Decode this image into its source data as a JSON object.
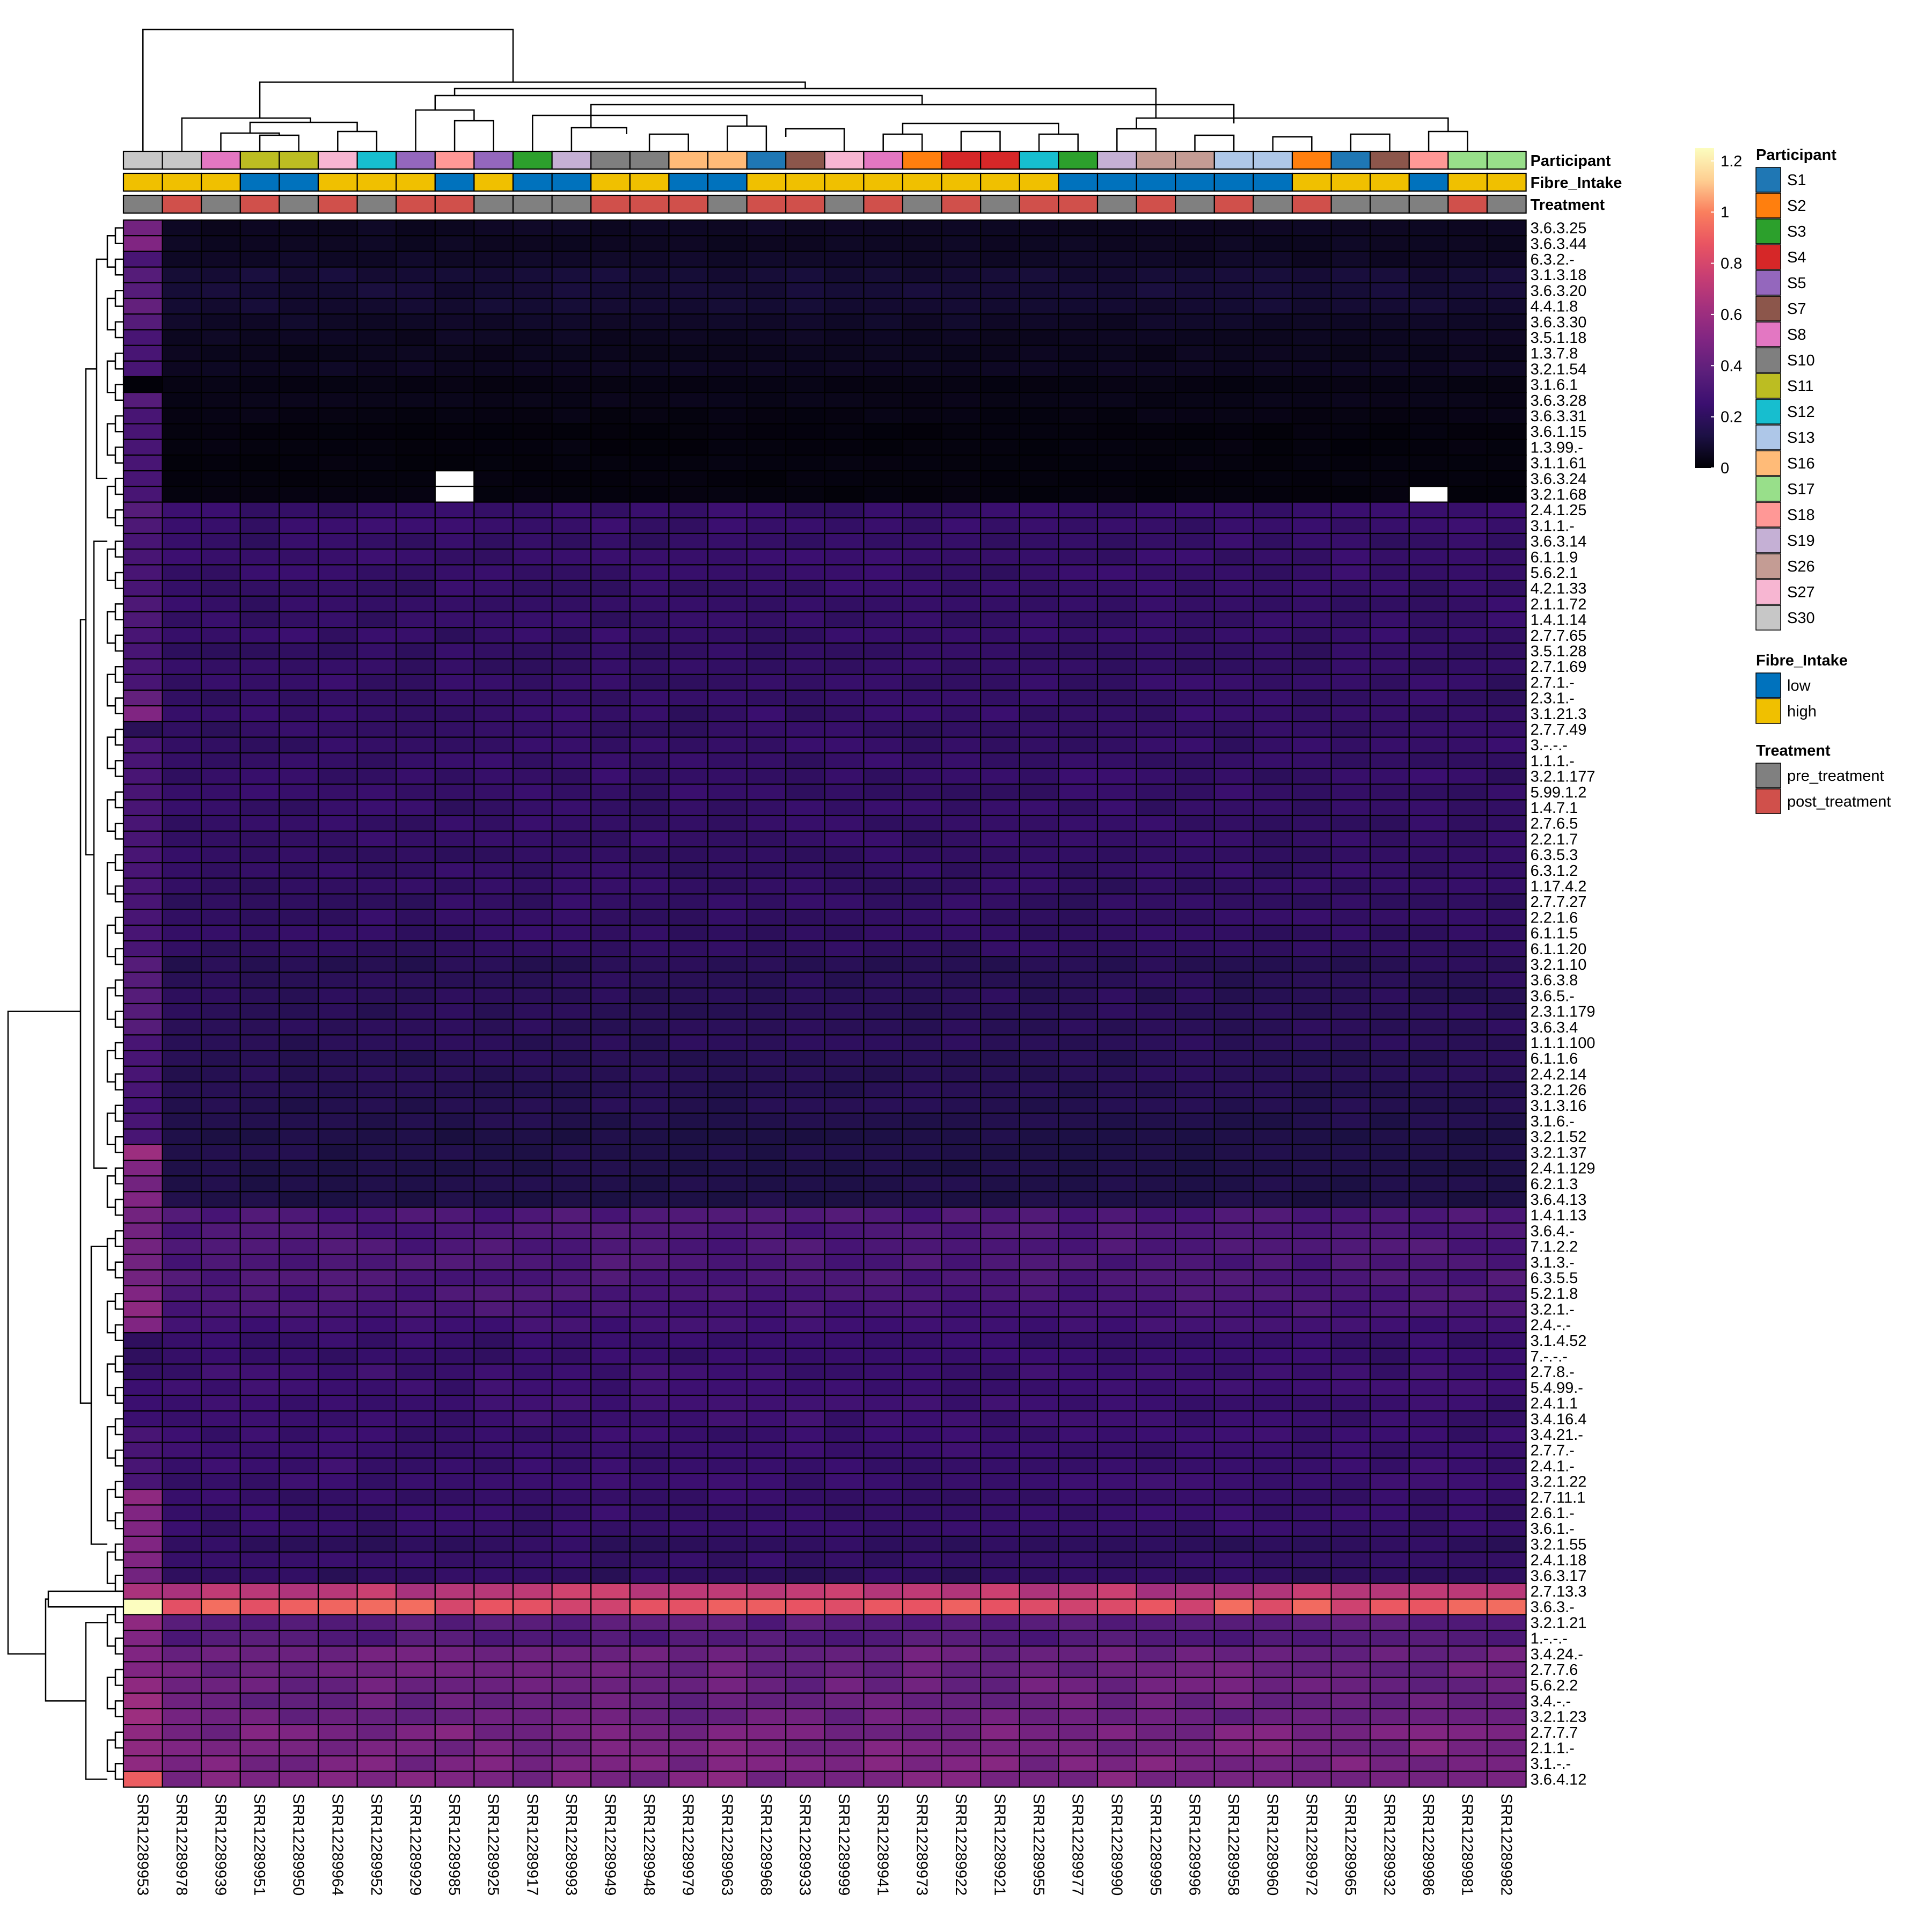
{
  "chart_data": {
    "type": "heatmap",
    "samples": [
      "SRR12289953",
      "SRR12289978",
      "SRR12289939",
      "SRR12289951",
      "SRR12289950",
      "SRR12289964",
      "SRR12289952",
      "SRR12289929",
      "SRR12289985",
      "SRR12289925",
      "SRR12289917",
      "SRR12289993",
      "SRR12289949",
      "SRR12289948",
      "SRR12289979",
      "SRR12289963",
      "SRR12289968",
      "SRR12289933",
      "SRR12289999",
      "SRR12289941",
      "SRR12289973",
      "SRR12289922",
      "SRR12289921",
      "SRR12289955",
      "SRR12289977",
      "SRR12289990",
      "SRR12289995",
      "SRR12289996",
      "SRR12289958",
      "SRR12289960",
      "SRR12289972",
      "SRR12289965",
      "SRR12289932",
      "SRR12289986",
      "SRR12289981",
      "SRR12289982"
    ],
    "rows": [
      "3.6.3.25",
      "3.6.3.44",
      "6.3.2.-",
      "3.1.3.18",
      "3.6.3.20",
      "4.4.1.8",
      "3.6.3.30",
      "3.5.1.18",
      "1.3.7.8",
      "3.2.1.54",
      "3.1.6.1",
      "3.6.3.28",
      "3.6.3.31",
      "3.6.1.15",
      "1.3.99.-",
      "3.1.1.61",
      "3.6.3.24",
      "3.2.1.68",
      "2.4.1.25",
      "3.1.1.-",
      "3.6.3.14",
      "6.1.1.9",
      "5.6.2.1",
      "4.2.1.33",
      "2.1.1.72",
      "1.4.1.14",
      "2.7.7.65",
      "3.5.1.28",
      "2.7.1.69",
      "2.7.1.-",
      "2.3.1.-",
      "3.1.21.3",
      "2.7.7.49",
      "3.-.-.-",
      "1.1.1.-",
      "3.2.1.177",
      "5.99.1.2",
      "1.4.7.1",
      "2.7.6.5",
      "2.2.1.7",
      "6.3.5.3",
      "6.3.1.2",
      "1.17.4.2",
      "2.7.7.27",
      "2.2.1.6",
      "6.1.1.5",
      "6.1.1.20",
      "3.2.1.10",
      "3.6.3.8",
      "3.6.5.-",
      "2.3.1.179",
      "3.6.3.4",
      "1.1.1.100",
      "6.1.1.6",
      "2.4.2.14",
      "3.2.1.26",
      "3.1.3.16",
      "3.1.6.-",
      "3.2.1.52",
      "3.2.1.37",
      "2.4.1.129",
      "6.2.1.3",
      "3.6.4.13",
      "1.4.1.13",
      "3.6.4.-",
      "7.1.2.2",
      "3.1.3.-",
      "6.3.5.5",
      "5.2.1.8",
      "3.2.1.-",
      "2.4.-.-",
      "3.1.4.52",
      "7.-.-.-",
      "2.7.8.-",
      "5.4.99.-",
      "2.4.1.1",
      "3.4.16.4",
      "3.4.21.-",
      "2.7.7.-",
      "2.4.1.-",
      "3.2.1.22",
      "2.7.11.1",
      "2.6.1.-",
      "3.6.1.-",
      "3.2.1.55",
      "2.4.1.18",
      "3.6.3.17",
      "2.7.13.3",
      "3.6.3.-",
      "3.2.1.21",
      "1.-.-.-",
      "3.4.24.-",
      "2.7.7.6",
      "5.6.2.2",
      "3.4.-.-",
      "3.2.1.23",
      "2.7.7.7",
      "2.1.1.-",
      "3.1.-.-",
      "3.6.4.12"
    ],
    "annotation_tracks": [
      "Participant",
      "Fibre_Intake",
      "Treatment"
    ],
    "participant_per_sample": [
      "S30",
      "S30",
      "S8",
      "S11",
      "S11",
      "S27",
      "S12",
      "S5",
      "S18",
      "S5",
      "S3",
      "S19",
      "S10",
      "S10",
      "S16",
      "S16",
      "S1",
      "S7",
      "S27",
      "S8",
      "S2",
      "S4",
      "S4",
      "S12",
      "S3",
      "S19",
      "S26",
      "S26",
      "S13",
      "S13",
      "S2",
      "S1",
      "S7",
      "S18",
      "S17",
      "S17"
    ],
    "fibre_per_sample": [
      "high",
      "high",
      "high",
      "low",
      "low",
      "high",
      "high",
      "high",
      "low",
      "high",
      "low",
      "low",
      "high",
      "high",
      "low",
      "low",
      "high",
      "high",
      "high",
      "high",
      "high",
      "high",
      "high",
      "high",
      "low",
      "low",
      "low",
      "low",
      "low",
      "low",
      "high",
      "high",
      "high",
      "low",
      "high",
      "high"
    ],
    "treatment_per_sample": [
      "pre_treatment",
      "post_treatment",
      "pre_treatment",
      "post_treatment",
      "pre_treatment",
      "post_treatment",
      "pre_treatment",
      "post_treatment",
      "post_treatment",
      "pre_treatment",
      "pre_treatment",
      "pre_treatment",
      "post_treatment",
      "post_treatment",
      "post_treatment",
      "pre_treatment",
      "post_treatment",
      "post_treatment",
      "pre_treatment",
      "post_treatment",
      "pre_treatment",
      "post_treatment",
      "pre_treatment",
      "post_treatment",
      "post_treatment",
      "pre_treatment",
      "post_treatment",
      "pre_treatment",
      "post_treatment",
      "pre_treatment",
      "post_treatment",
      "pre_treatment",
      "pre_treatment",
      "pre_treatment",
      "post_treatment",
      "pre_treatment"
    ],
    "color_scale": {
      "ticks": [
        "1.2",
        "1",
        "0.8",
        "0.6",
        "0.4",
        "0.2",
        "0"
      ],
      "range": [
        0,
        1.25
      ],
      "colors": [
        "#000004",
        "#1c1044",
        "#3b0f70",
        "#5c1f7b",
        "#802582",
        "#a3307e",
        "#c83e73",
        "#e95462",
        "#fa7f5e",
        "#fecf92",
        "#fcfdbf"
      ]
    },
    "row_base_values": [
      0.06,
      0.06,
      0.07,
      0.1,
      0.1,
      0.09,
      0.07,
      0.06,
      0.05,
      0.06,
      0.03,
      0.04,
      0.03,
      0.02,
      0.02,
      0.02,
      0.02,
      0.02,
      0.23,
      0.23,
      0.22,
      0.23,
      0.23,
      0.22,
      0.22,
      0.22,
      0.22,
      0.21,
      0.21,
      0.22,
      0.22,
      0.22,
      0.21,
      0.22,
      0.22,
      0.22,
      0.22,
      0.22,
      0.22,
      0.22,
      0.21,
      0.21,
      0.21,
      0.21,
      0.21,
      0.21,
      0.2,
      0.17,
      0.18,
      0.18,
      0.18,
      0.18,
      0.18,
      0.17,
      0.17,
      0.16,
      0.16,
      0.15,
      0.13,
      0.14,
      0.14,
      0.14,
      0.13,
      0.31,
      0.31,
      0.31,
      0.31,
      0.31,
      0.3,
      0.29,
      0.27,
      0.23,
      0.23,
      0.25,
      0.25,
      0.25,
      0.25,
      0.24,
      0.24,
      0.24,
      0.24,
      0.23,
      0.23,
      0.23,
      0.2,
      0.22,
      0.2,
      0.7,
      0.86,
      0.36,
      0.33,
      0.42,
      0.42,
      0.42,
      0.42,
      0.42,
      0.47,
      0.47,
      0.47,
      0.48
    ],
    "first_sample_values": [
      0.45,
      0.5,
      0.3,
      0.35,
      0.35,
      0.4,
      0.35,
      0.3,
      0.3,
      0.3,
      0.01,
      0.35,
      0.3,
      0.3,
      0.3,
      0.3,
      0.3,
      0.3,
      0.35,
      0.32,
      0.3,
      0.3,
      0.3,
      0.3,
      0.32,
      0.32,
      0.3,
      0.3,
      0.3,
      0.3,
      0.4,
      0.5,
      0.18,
      0.3,
      0.3,
      0.3,
      0.3,
      0.3,
      0.3,
      0.3,
      0.3,
      0.3,
      0.3,
      0.3,
      0.3,
      0.3,
      0.3,
      0.35,
      0.35,
      0.35,
      0.35,
      0.35,
      0.3,
      0.3,
      0.3,
      0.3,
      0.28,
      0.3,
      0.3,
      0.6,
      0.5,
      0.45,
      0.5,
      0.45,
      0.45,
      0.45,
      0.45,
      0.45,
      0.5,
      0.55,
      0.5,
      0.2,
      0.2,
      0.22,
      0.25,
      0.25,
      0.25,
      0.3,
      0.3,
      0.3,
      0.3,
      0.55,
      0.5,
      0.5,
      0.5,
      0.5,
      0.45,
      0.65,
      1.25,
      0.55,
      0.5,
      0.5,
      0.5,
      0.55,
      0.6,
      0.6,
      0.55,
      0.55,
      0.55,
      0.9
    ],
    "missing_cells": [
      {
        "row": "3.6.3.24",
        "sample": "SRR12289985"
      },
      {
        "row": "3.2.1.68",
        "sample": "SRR12289985"
      },
      {
        "row": "3.2.1.68",
        "sample": "SRR12289986"
      }
    ]
  },
  "legend": {
    "participant": {
      "title": "Participant",
      "items": [
        {
          "label": "S1",
          "color": "#1f77b4"
        },
        {
          "label": "S2",
          "color": "#ff7f0e"
        },
        {
          "label": "S3",
          "color": "#2ca02c"
        },
        {
          "label": "S4",
          "color": "#d62728"
        },
        {
          "label": "S5",
          "color": "#9467bd"
        },
        {
          "label": "S7",
          "color": "#8c564b"
        },
        {
          "label": "S8",
          "color": "#e377c2"
        },
        {
          "label": "S10",
          "color": "#7f7f7f"
        },
        {
          "label": "S11",
          "color": "#bcbd22"
        },
        {
          "label": "S12",
          "color": "#17becf"
        },
        {
          "label": "S13",
          "color": "#aec7e8"
        },
        {
          "label": "S16",
          "color": "#ffbb78"
        },
        {
          "label": "S17",
          "color": "#98df8a"
        },
        {
          "label": "S18",
          "color": "#ff9896"
        },
        {
          "label": "S19",
          "color": "#c5b0d5"
        },
        {
          "label": "S26",
          "color": "#c49c94"
        },
        {
          "label": "S27",
          "color": "#f7b6d2"
        },
        {
          "label": "S30",
          "color": "#c7c7c7"
        }
      ]
    },
    "fibre": {
      "title": "Fibre_Intake",
      "items": [
        {
          "label": "low",
          "color": "#0072bd"
        },
        {
          "label": "high",
          "color": "#f0c000"
        }
      ]
    },
    "treatment": {
      "title": "Treatment",
      "items": [
        {
          "label": "pre_treatment",
          "color": "#808080"
        },
        {
          "label": "post_treatment",
          "color": "#d0504b"
        }
      ]
    }
  }
}
